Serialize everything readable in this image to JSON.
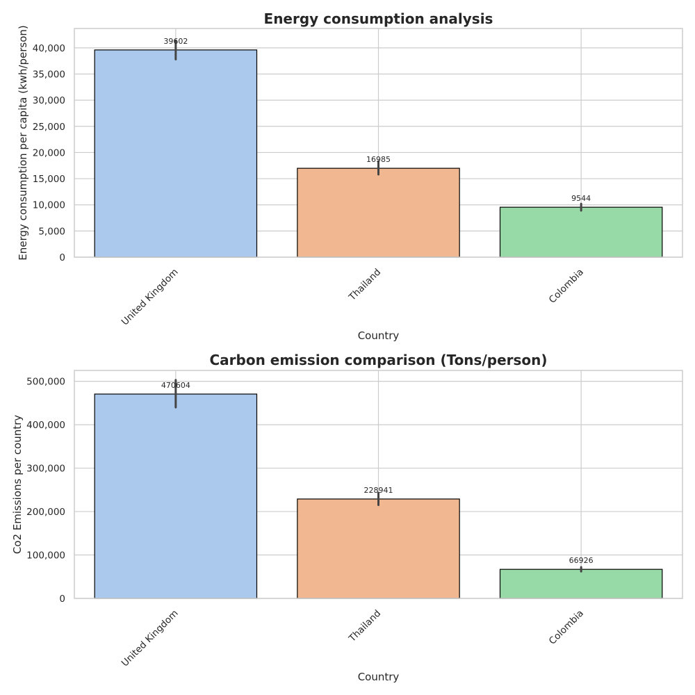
{
  "chart_data": [
    {
      "type": "bar",
      "title": "Energy consumption analysis",
      "xlabel": "Country",
      "ylabel": "Energy consumption per capita (kwh/person)",
      "categories": [
        "United Kingdom",
        "Thailand",
        "Colombia"
      ],
      "values": [
        39602,
        16985,
        9544
      ],
      "data_labels": [
        "39602",
        "16985",
        "9544"
      ],
      "error_bars": [
        [
          37800,
          41400
        ],
        [
          15800,
          18300
        ],
        [
          8900,
          10200
        ]
      ],
      "colors": [
        "#abc9ec",
        "#f0b791",
        "#97d9a7"
      ],
      "ylim": [
        0,
        43700
      ],
      "yticks": [
        0,
        5000,
        10000,
        15000,
        20000,
        25000,
        30000,
        35000,
        40000
      ],
      "ytick_labels": [
        "0",
        "5,000",
        "10,000",
        "15,000",
        "20,000",
        "25,000",
        "30,000",
        "35,000",
        "40,000"
      ],
      "grid": true
    },
    {
      "type": "bar",
      "title": "Carbon emission comparison (Tons/person)",
      "xlabel": "Country",
      "ylabel": "Co2 Emissions per country",
      "categories": [
        "United Kingdom",
        "Thailand",
        "Colombia"
      ],
      "values": [
        470604,
        228941,
        66926
      ],
      "data_labels": [
        "470604",
        "228941",
        "66926"
      ],
      "error_bars": [
        [
          440000,
          503000
        ],
        [
          215000,
          243000
        ],
        [
          62000,
          72000
        ]
      ],
      "colors": [
        "#abc9ec",
        "#f0b791",
        "#97d9a7"
      ],
      "ylim": [
        0,
        525000
      ],
      "yticks": [
        0,
        100000,
        200000,
        300000,
        400000,
        500000
      ],
      "ytick_labels": [
        "0",
        "100,000",
        "200,000",
        "300,000",
        "400,000",
        "500,000"
      ],
      "grid": true
    }
  ]
}
